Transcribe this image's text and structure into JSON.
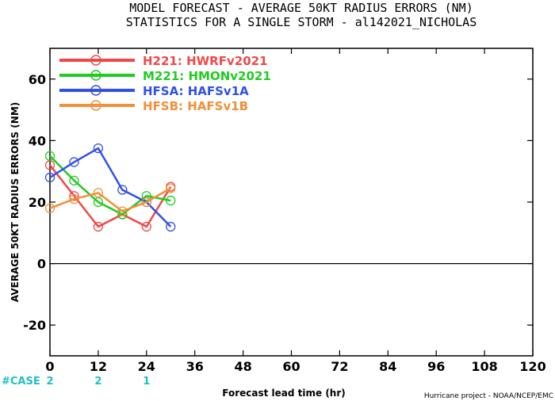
{
  "chart_data": {
    "type": "line",
    "title": [
      "MODEL FORECAST - AVERAGE 50KT RADIUS ERRORS (NM)",
      "STATISTICS FOR A SINGLE STORM - al142021_NICHOLAS"
    ],
    "xlabel": "Forecast lead time (hr)",
    "ylabel": "AVERAGE 50KT RADIUS ERRORS (NM)",
    "xlim": [
      0,
      120
    ],
    "ylim": [
      -30,
      70
    ],
    "xticks": [
      0,
      12,
      24,
      36,
      48,
      60,
      72,
      84,
      96,
      108,
      120
    ],
    "yticks": [
      -20,
      0,
      20,
      40,
      60
    ],
    "grid": false,
    "legend_position": "top-left",
    "case_label": "#CASE",
    "cases": [
      {
        "x": 0,
        "count": "2"
      },
      {
        "x": 12,
        "count": "2"
      },
      {
        "x": 24,
        "count": "1"
      }
    ],
    "credit": "Hurricane project - NOAA/NCEP/EMC",
    "series": [
      {
        "name": "H221:",
        "label": "HWRFv2021",
        "color": "#f04848",
        "x": [
          0,
          6,
          12,
          18,
          24,
          30
        ],
        "y": [
          32,
          22,
          12,
          16,
          12,
          25
        ]
      },
      {
        "name": "M221:",
        "label": "HMONv2021",
        "color": "#20cc20",
        "x": [
          0,
          6,
          12,
          18,
          24,
          30
        ],
        "y": [
          35,
          27,
          20,
          16,
          22,
          20.5
        ]
      },
      {
        "name": "HFSA:",
        "label": "HAFSv1A",
        "color": "#3050e8",
        "x": [
          0,
          6,
          12,
          18,
          24,
          30
        ],
        "y": [
          28,
          33,
          37.5,
          24,
          20,
          12
        ]
      },
      {
        "name": "HFSB:",
        "label": "HAFSv1B",
        "color": "#f0903a",
        "x": [
          0,
          6,
          12,
          18,
          24,
          30
        ],
        "y": [
          18,
          21,
          23,
          17,
          20,
          24.5
        ]
      }
    ]
  },
  "colors": {
    "axis": "#000000",
    "zero_line": "#000000",
    "case": "#20c0c0"
  }
}
